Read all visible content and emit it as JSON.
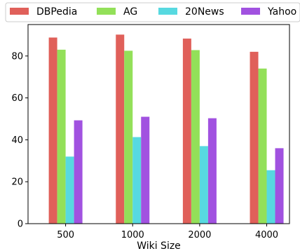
{
  "chart_data": {
    "type": "bar",
    "title": "",
    "xlabel": "Wiki Size",
    "ylabel": "",
    "categories": [
      "500",
      "1000",
      "2000",
      "4000"
    ],
    "series": [
      {
        "name": "DBPedia",
        "color": "#e0605a",
        "values": [
          88.8,
          90.2,
          88.3,
          82.0
        ]
      },
      {
        "name": "AG",
        "color": "#93e059",
        "values": [
          83.0,
          82.5,
          82.8,
          74.0
        ]
      },
      {
        "name": "20News",
        "color": "#57d9e0",
        "values": [
          32.0,
          41.3,
          37.0,
          25.5
        ]
      },
      {
        "name": "Yahoo",
        "color": "#a152e0",
        "values": [
          49.3,
          51.0,
          50.3,
          36.0
        ]
      }
    ],
    "ylim": [
      0,
      95
    ],
    "yticks": [
      0,
      20,
      40,
      60,
      80
    ],
    "grid": false,
    "legend_position": "top"
  }
}
